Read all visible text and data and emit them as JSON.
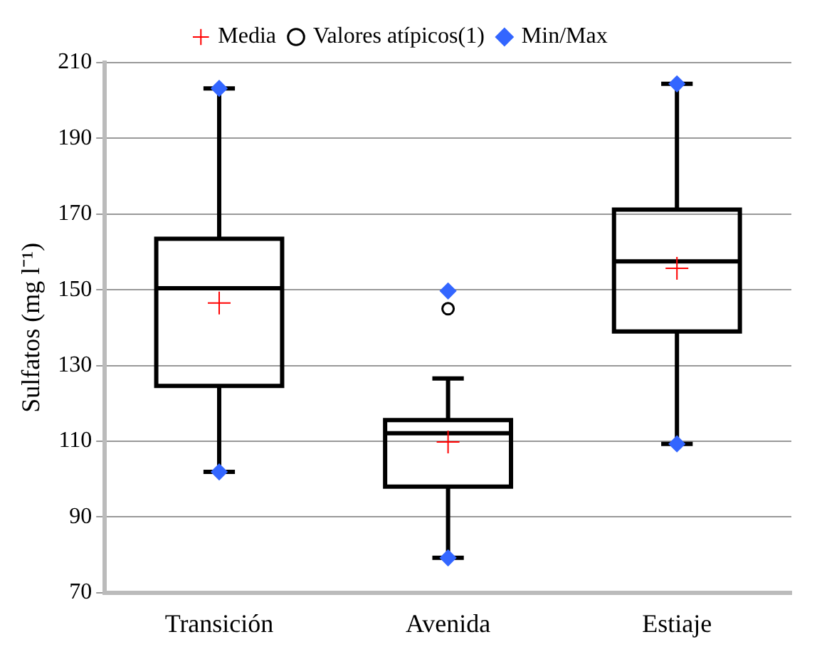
{
  "chart_data": {
    "type": "box",
    "ylabel": "Sulfatos (mg l⁻¹)",
    "categories": [
      "Transición",
      "Avenida",
      "Estiaje"
    ],
    "series": [
      {
        "type": "box",
        "color": "#000000",
        "boxes": [
          {
            "low": 101.9,
            "q1": 124.6,
            "median": 150.4,
            "q3": 163.5,
            "high": 203.2
          },
          {
            "low": 79.2,
            "q1": 98.0,
            "median": 112.1,
            "q3": 115.6,
            "high": 126.6
          },
          {
            "low": 109.3,
            "q1": 139.0,
            "median": 157.5,
            "q3": 171.2,
            "high": 204.4
          }
        ]
      },
      {
        "type": "scatter",
        "name": "Media",
        "color": "#ff0000",
        "marker": "cross",
        "x": [
          "Transición",
          "Avenida",
          "Estiaje"
        ],
        "values": [
          146.5,
          109.8,
          155.7
        ]
      },
      {
        "type": "scatter",
        "name": "Valores atípicos(1)",
        "color": "#000000",
        "marker": "circle",
        "x": [
          "Avenida"
        ],
        "values": [
          145.0
        ]
      },
      {
        "type": "scatter",
        "name": "Min/Max",
        "color": "#3366ff",
        "marker": "diamond",
        "x": [
          "Transición",
          "Transición",
          "Avenida",
          "Avenida",
          "Estiaje",
          "Estiaje"
        ],
        "values": [
          203.2,
          101.9,
          149.7,
          79.2,
          204.4,
          109.3
        ]
      }
    ],
    "ylim": [
      70,
      210
    ],
    "yticks": [
      70,
      90,
      110,
      130,
      150,
      170,
      190,
      210
    ],
    "grid": "y",
    "legend": "top"
  }
}
